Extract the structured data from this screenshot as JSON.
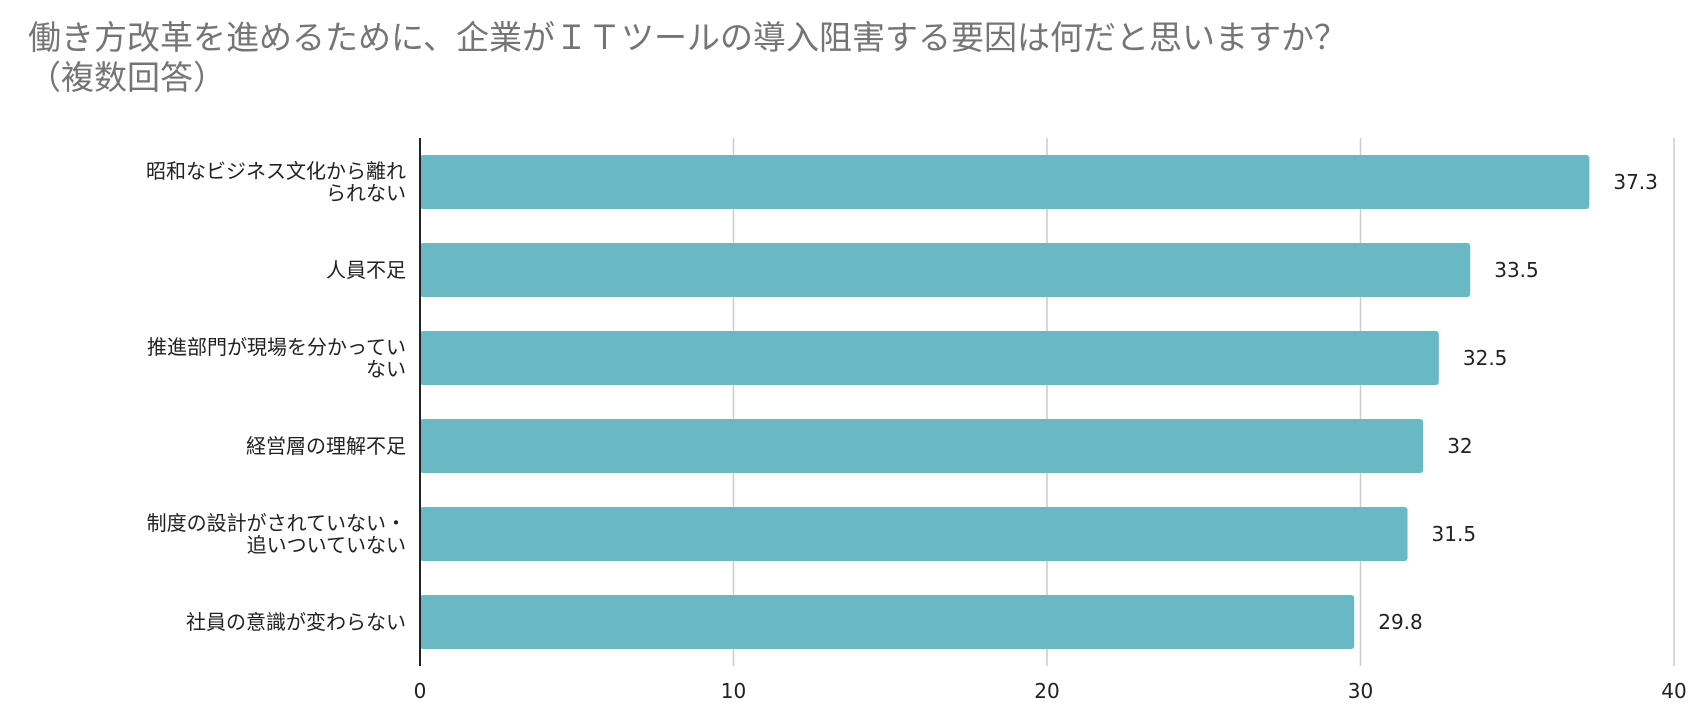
{
  "chart_data": {
    "type": "bar",
    "orientation": "horizontal",
    "title": "働き方改革を進めるために、企業がＩＴツールの導入阻害する要因は何だと思いますか？\n（複数回答）",
    "categories": [
      "昭和なビジネス文化から離れ\nられない",
      "人員不足",
      "推進部門が現場を分かってい\nない",
      "経営層の理解不足",
      "制度の設計がされていない・\n追いついていない",
      "社員の意識が変わらない"
    ],
    "values": [
      37.3,
      33.5,
      32.5,
      32,
      31.5,
      29.8
    ],
    "value_labels": [
      "37.3",
      "33.5",
      "32.5",
      "32",
      "31.5",
      "29.8"
    ],
    "xlim": [
      0,
      40
    ],
    "xticks": [
      0,
      10,
      20,
      30,
      40
    ],
    "xtick_labels": [
      "0",
      "10",
      "20",
      "30",
      "40"
    ],
    "xlabel": "",
    "ylabel": "",
    "grid": true,
    "legend": "none",
    "colors": {
      "bar": "#68b9c4",
      "grid": "#cccccc",
      "axis": "#222222",
      "title": "#757575",
      "text": "#222222"
    }
  }
}
